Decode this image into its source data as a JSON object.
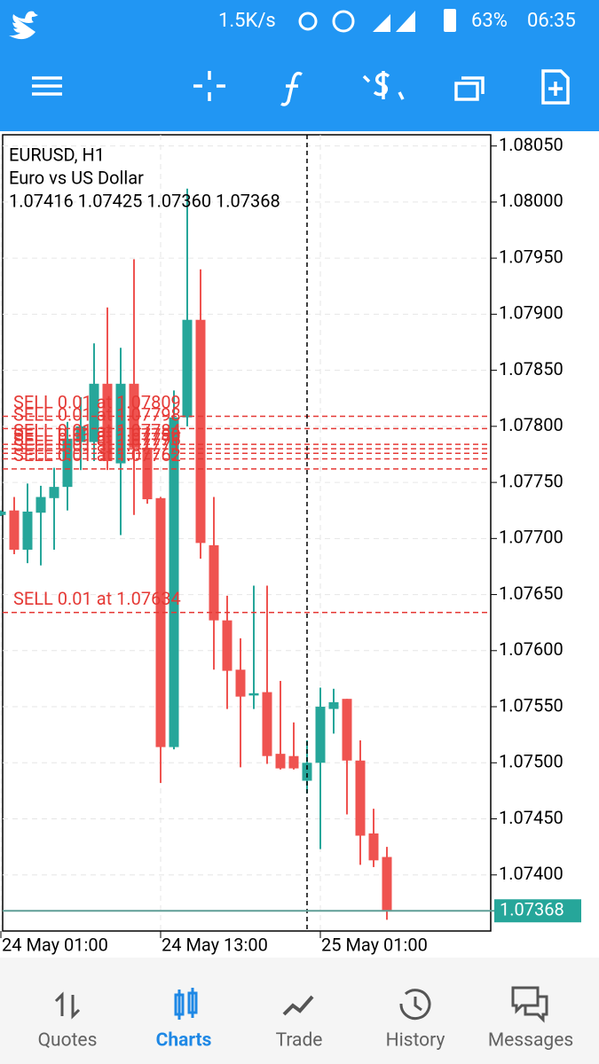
{
  "status_bar": {
    "speed": "1.5K/s",
    "battery": "63%",
    "time": "06:35"
  },
  "chart_data": {
    "type": "candlestick",
    "symbol": "EURUSD, H1",
    "description": "Euro vs US Dollar",
    "ohlc_text": "1.07416 1.07425 1.07360 1.07368",
    "categories": [
      "24 May 01:00",
      null,
      null,
      null,
      null,
      null,
      null,
      null,
      null,
      null,
      null,
      null,
      "24 May 13:00",
      null,
      null,
      null,
      null,
      null,
      null,
      null,
      null,
      null,
      null,
      null,
      "25 May 01:00",
      null,
      null,
      null,
      null,
      null
    ],
    "open": [
      1.07721,
      1.07725,
      1.0769,
      1.07723,
      1.07736,
      1.07746,
      1.07786,
      1.07786,
      1.07838,
      1.07767,
      1.07838,
      1.07781,
      1.07736,
      1.07514,
      1.07808,
      1.07895,
      1.07694,
      1.07627,
      1.07583,
      1.0756,
      1.07563,
      1.07508,
      1.07506,
      1.07484,
      1.075,
      1.07548,
      1.07557,
      1.07502,
      1.07437,
      1.07416
    ],
    "high": [
      1.07725,
      1.07737,
      1.07749,
      1.07747,
      1.07763,
      1.07804,
      1.07826,
      1.07874,
      1.07906,
      1.0787,
      1.07949,
      1.078,
      1.07737,
      1.07832,
      1.08012,
      1.0794,
      1.07737,
      1.07649,
      1.07611,
      1.07658,
      1.07658,
      1.07573,
      1.07536,
      1.0752,
      1.07567,
      1.07566,
      1.07557,
      1.0752,
      1.07459,
      1.07425
    ],
    "low": [
      1.0772,
      1.07686,
      1.07678,
      1.07676,
      1.0769,
      1.07725,
      1.07761,
      1.07769,
      1.07761,
      1.07703,
      1.07721,
      1.07731,
      1.07482,
      1.07512,
      1.078,
      1.07682,
      1.07583,
      1.07548,
      1.07496,
      1.07548,
      1.07499,
      1.07494,
      1.07494,
      1.07473,
      1.07423,
      1.07526,
      1.07454,
      1.07409,
      1.07407,
      1.0736
    ],
    "close": [
      1.07724,
      1.0769,
      1.07724,
      1.07737,
      1.07746,
      1.07789,
      1.078,
      1.07838,
      1.07769,
      1.07838,
      1.07781,
      1.07735,
      1.07514,
      1.07808,
      1.07895,
      1.07696,
      1.07627,
      1.07582,
      1.07559,
      1.07562,
      1.07506,
      1.07495,
      1.07495,
      1.075,
      1.0755,
      1.07554,
      1.07502,
      1.07435,
      1.07413,
      1.07368
    ],
    "up_color": "#26a69a",
    "down_color": "#ef5350",
    "ylim": [
      1.0735,
      1.0806
    ],
    "yticks": [
      {
        "value": 1.0805,
        "label": "1.08050"
      },
      {
        "value": 1.08,
        "label": "1.08000"
      },
      {
        "value": 1.0795,
        "label": "1.07950"
      },
      {
        "value": 1.079,
        "label": "1.07900"
      },
      {
        "value": 1.0785,
        "label": "1.07850"
      },
      {
        "value": 1.078,
        "label": "1.07800"
      },
      {
        "value": 1.0775,
        "label": "1.07750"
      },
      {
        "value": 1.077,
        "label": "1.07700"
      },
      {
        "value": 1.0765,
        "label": "1.07650"
      },
      {
        "value": 1.076,
        "label": "1.07600"
      },
      {
        "value": 1.0755,
        "label": "1.07550"
      },
      {
        "value": 1.075,
        "label": "1.07500"
      },
      {
        "value": 1.0745,
        "label": "1.07450"
      },
      {
        "value": 1.074,
        "label": "1.07400"
      }
    ],
    "grid": true,
    "orders": [
      {
        "label": "SELL 0.01 at 1.07809",
        "price": 1.07809
      },
      {
        "label": "SELL 0.01 at 1.07798",
        "price": 1.07798
      },
      {
        "label": "SELL 0.01 at 1.07784",
        "price": 1.07784
      },
      {
        "label": "SELL 0.01 at 1.07780",
        "price": 1.0778
      },
      {
        "label": "SELL 0.01 at 1.07776",
        "price": 1.07776
      },
      {
        "label": "SELL 0.01 at 1.07771",
        "price": 1.07771
      },
      {
        "label": "SELL 0.01 at 1.07762",
        "price": 1.07762
      },
      {
        "label": "SELL 0.01 at 1.07634",
        "price": 1.07634
      }
    ],
    "order_color": "#e53935",
    "last_price": 1.07368
  },
  "bottom_nav": [
    "Quotes",
    "Charts",
    "Trade",
    "History",
    "Messages"
  ]
}
